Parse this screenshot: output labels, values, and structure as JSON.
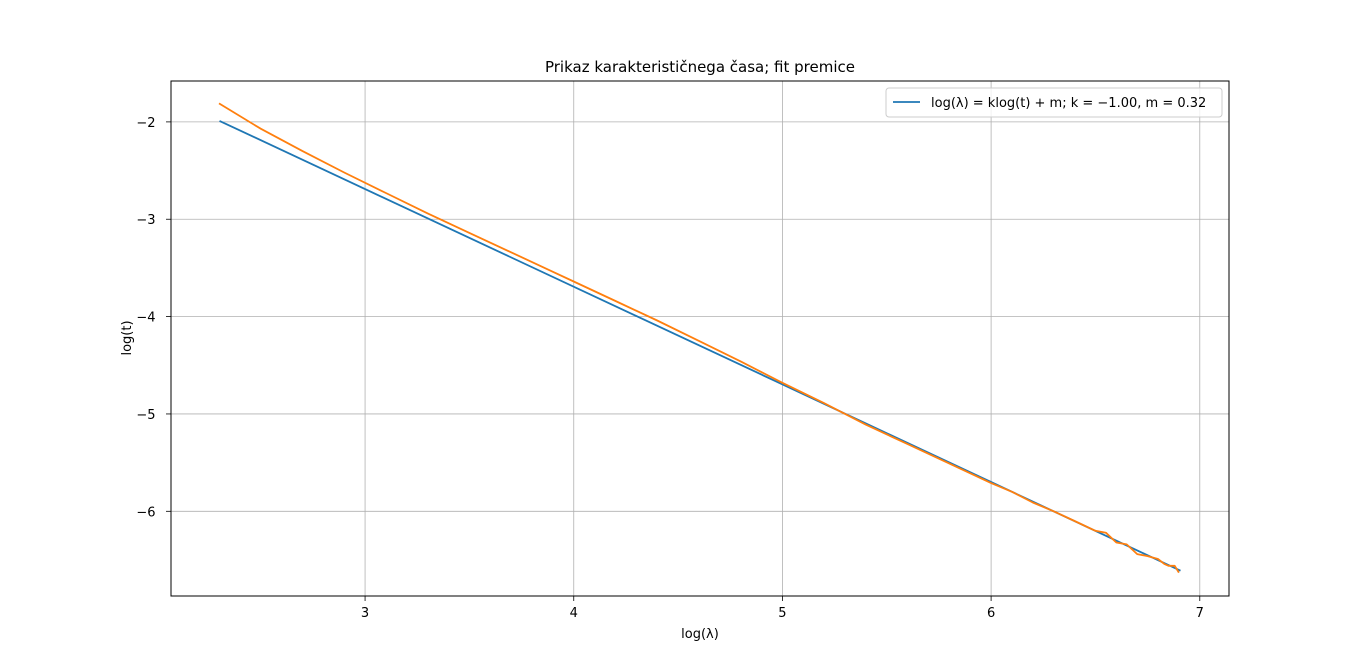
{
  "chart_data": {
    "type": "line",
    "title": "Prikaz karakterističnega časa; fit premice",
    "xlabel": "log(λ)",
    "ylabel": "log(t)",
    "xlim": [
      2.07,
      7.14
    ],
    "ylim": [
      -6.87,
      -1.58
    ],
    "xticks": [
      3,
      4,
      5,
      6,
      7
    ],
    "yticks": [
      -2,
      -3,
      -4,
      -5,
      -6
    ],
    "xtick_labels": [
      "3",
      "4",
      "5",
      "6",
      "7"
    ],
    "ytick_labels": [
      "−2",
      "−3",
      "−4",
      "−5",
      "−6"
    ],
    "grid": true,
    "legend_position": "top-right",
    "legend_label": "log(λ) = klog(t) + m; k = −1.00, m = 0.32",
    "series": [
      {
        "name": "log(λ) = klog(t) + m; k = −1.00, m = 0.32",
        "color": "#1f77b4",
        "x": [
          2.3026,
          6.9078
        ],
        "y": [
          -1.99,
          -6.61
        ]
      },
      {
        "color": "#ff7f0e",
        "x": [
          2.3,
          2.5,
          2.7,
          2.9,
          3.1,
          3.3,
          3.5,
          3.7,
          3.9,
          4.0,
          4.2,
          4.4,
          4.6,
          4.8,
          5.0,
          5.2,
          5.4,
          5.6,
          5.8,
          6.0,
          6.1,
          6.2,
          6.3,
          6.4,
          6.5,
          6.55,
          6.6,
          6.65,
          6.7,
          6.75,
          6.8,
          6.83,
          6.85,
          6.88,
          6.9
        ],
        "y": [
          -1.81,
          -2.07,
          -2.3,
          -2.52,
          -2.73,
          -2.94,
          -3.14,
          -3.34,
          -3.54,
          -3.64,
          -3.84,
          -4.04,
          -4.25,
          -4.46,
          -4.68,
          -4.89,
          -5.11,
          -5.31,
          -5.51,
          -5.71,
          -5.8,
          -5.91,
          -6.0,
          -6.1,
          -6.2,
          -6.22,
          -6.32,
          -6.34,
          -6.44,
          -6.46,
          -6.49,
          -6.54,
          -6.56,
          -6.56,
          -6.63
        ]
      }
    ]
  }
}
